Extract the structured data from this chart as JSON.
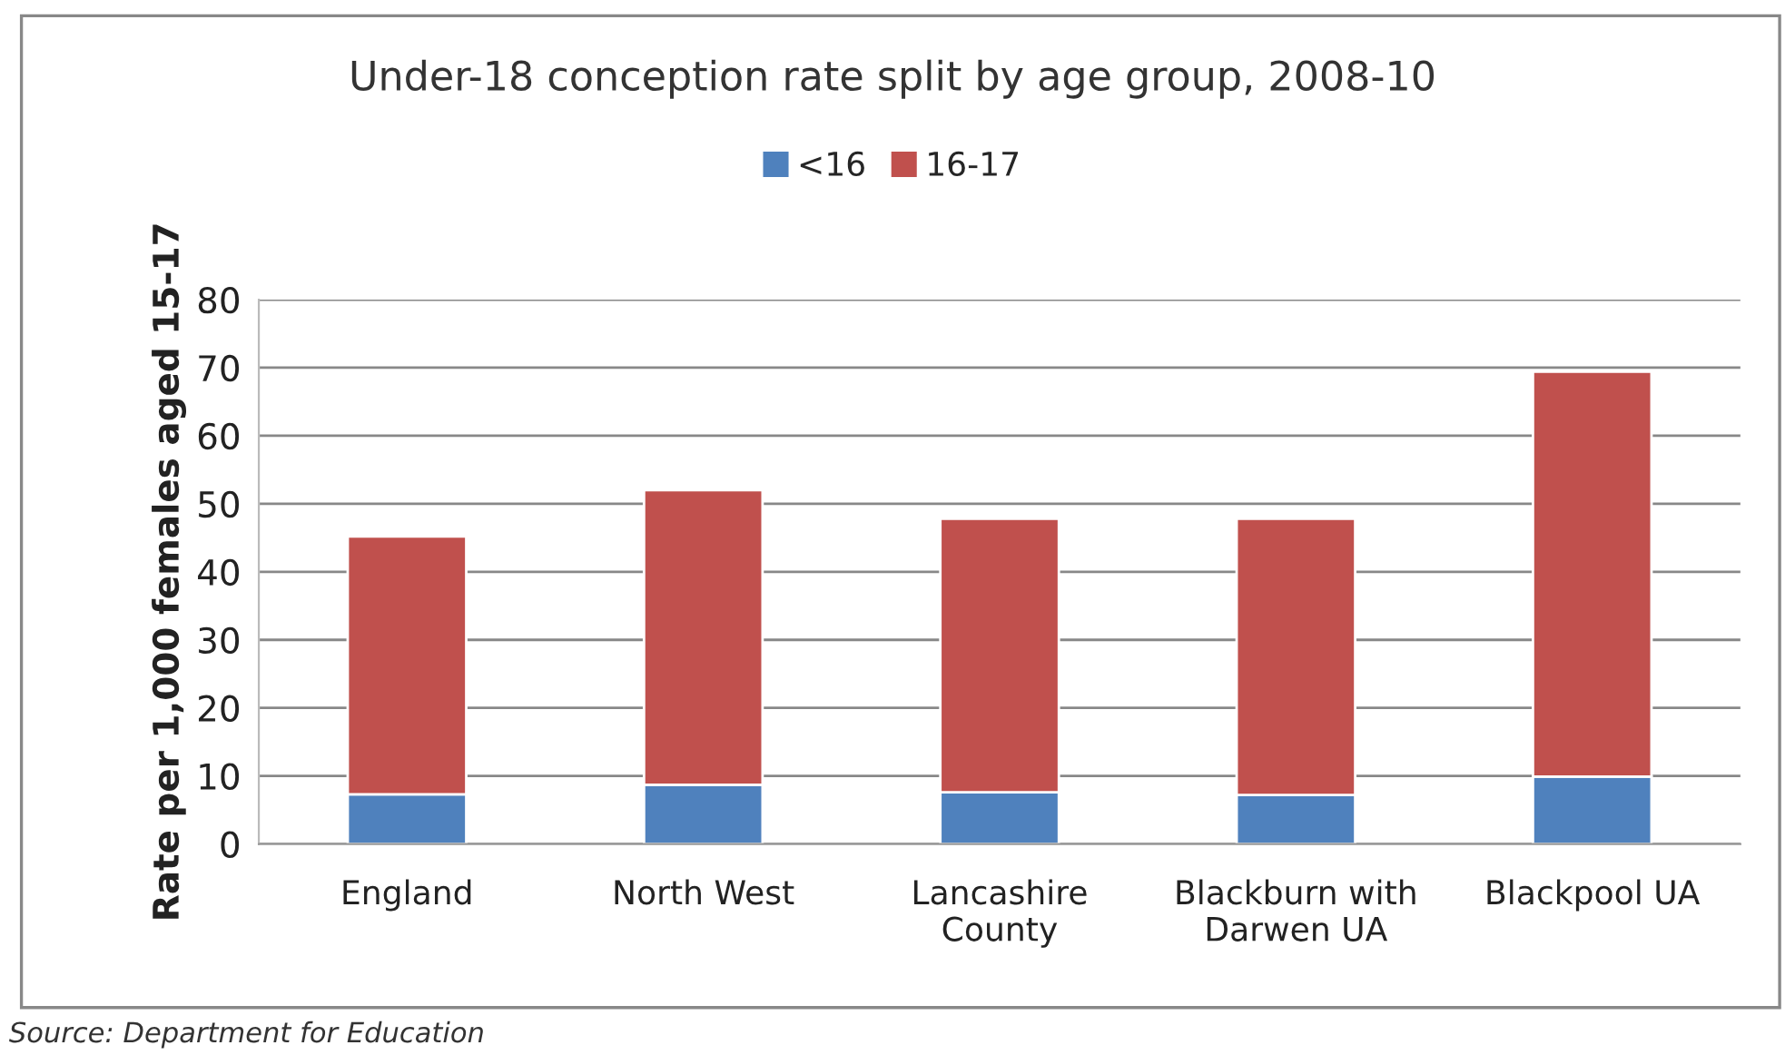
{
  "chart_data": {
    "type": "bar",
    "title": "Under-18 conception rate split by age group, 2008-10",
    "ylabel": "Rate per 1,000 females aged 15-17",
    "categories": [
      "England",
      "North West",
      "Lancashire\nCounty",
      "Blackburn with\nDarwen UA",
      "Blackpool UA"
    ],
    "stacked": true,
    "series": [
      {
        "name": "<16",
        "color": "#4f81bd",
        "values": [
          7.3,
          8.7,
          7.6,
          7.2,
          9.9
        ]
      },
      {
        "name": "16-17",
        "color": "#c0504d",
        "values": [
          37.9,
          43.3,
          40.2,
          40.6,
          59.5
        ]
      }
    ],
    "ylim": [
      0,
      80
    ],
    "yticks": [
      0,
      10,
      20,
      30,
      40,
      50,
      60,
      70,
      80
    ],
    "grid": "y",
    "legend": "top",
    "annotations": [
      "Source: Department for Education"
    ]
  }
}
